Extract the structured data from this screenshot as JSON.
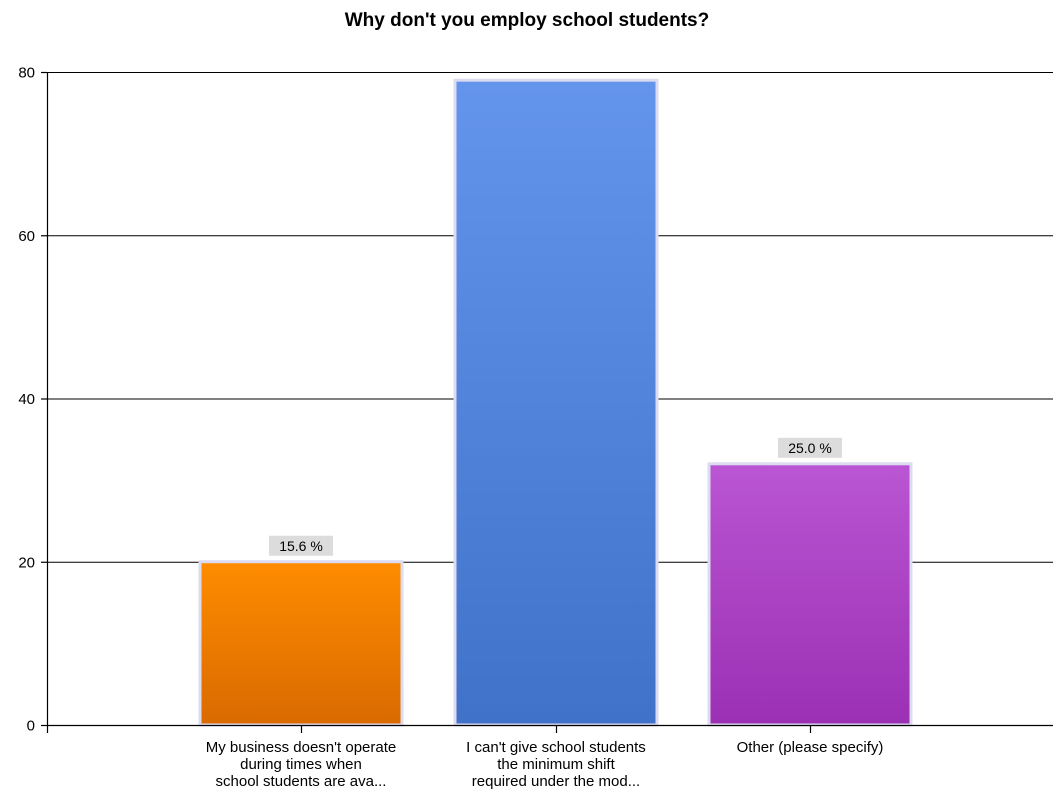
{
  "chart_data": {
    "type": "bar",
    "title": "Why don't you employ school students?",
    "xlabel": "",
    "ylabel": "",
    "ylim": [
      0,
      80
    ],
    "yticks": [
      0,
      20,
      40,
      60,
      80
    ],
    "grid": true,
    "legend": "none",
    "categories": [
      [
        "My business doesn't operate",
        "during times when",
        "school students are ava..."
      ],
      [
        "I can't give school students",
        "the minimum shift",
        "required under the mod..."
      ],
      [
        "Other (please specify)"
      ]
    ],
    "values": [
      20,
      79,
      32
    ],
    "data_labels": [
      "15.6 %",
      "",
      "25.0 %"
    ],
    "colors": [
      {
        "top": "#ff8c00",
        "bottom": "#d96a00"
      },
      {
        "top": "#6495ed",
        "bottom": "#3f72c8"
      },
      {
        "top": "#ba55d3",
        "bottom": "#9b30b4"
      }
    ]
  }
}
